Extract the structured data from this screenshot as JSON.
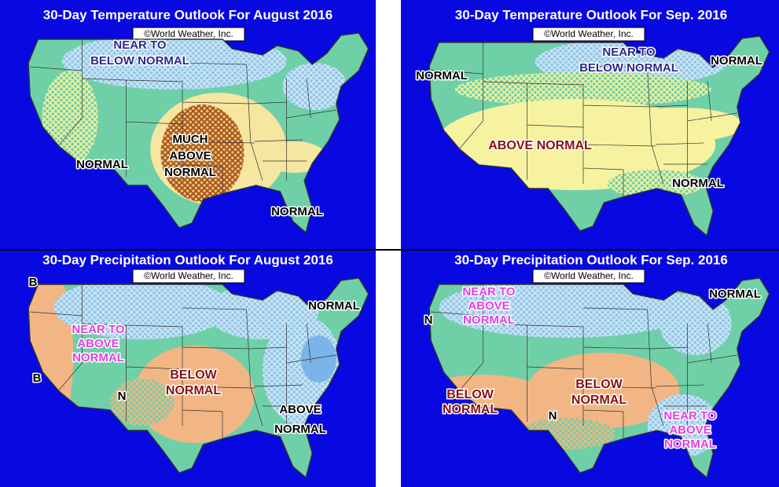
{
  "panels": [
    {
      "title": "30-Day Temperature Outlook For August 2016",
      "credit": "©World Weather, Inc.",
      "labels": [
        [
          "NEAR TO",
          "BELOW NORMAL"
        ],
        [
          "MUCH",
          "ABOVE",
          "NORMAL"
        ],
        [
          "NORMAL"
        ],
        [
          "NORMAL"
        ]
      ]
    },
    {
      "title": "30-Day Temperature Outlook For Sep. 2016",
      "credit": "©World Weather, Inc.",
      "labels": [
        [
          "NEAR TO",
          "BELOW NORMAL"
        ],
        [
          "NORMAL"
        ],
        [
          "NORMAL"
        ],
        [
          "ABOVE NORMAL"
        ],
        [
          "NORMAL"
        ]
      ]
    },
    {
      "title": "30-Day Precipitation Outlook For August 2016",
      "credit": "©World Weather, Inc.",
      "labels": [
        [
          "B"
        ],
        [
          "NEAR TO",
          "ABOVE",
          "NORMAL"
        ],
        [
          "NORMAL"
        ],
        [
          "BELOW",
          "NORMAL"
        ],
        [
          "ABOVE",
          "NORMAL"
        ],
        [
          "B"
        ],
        [
          "N"
        ]
      ]
    },
    {
      "title": "30-Day Precipitation Outlook For Sep. 2016",
      "credit": "©World Weather, Inc.",
      "labels": [
        [
          "NEAR TO",
          "ABOVE",
          "NORMAL"
        ],
        [
          "N"
        ],
        [
          "NORMAL"
        ],
        [
          "BELOW",
          "NORMAL"
        ],
        [
          "BELOW",
          "NORMAL"
        ],
        [
          "N"
        ],
        [
          "NEAR TO",
          "ABOVE",
          "NORMAL"
        ]
      ]
    }
  ]
}
